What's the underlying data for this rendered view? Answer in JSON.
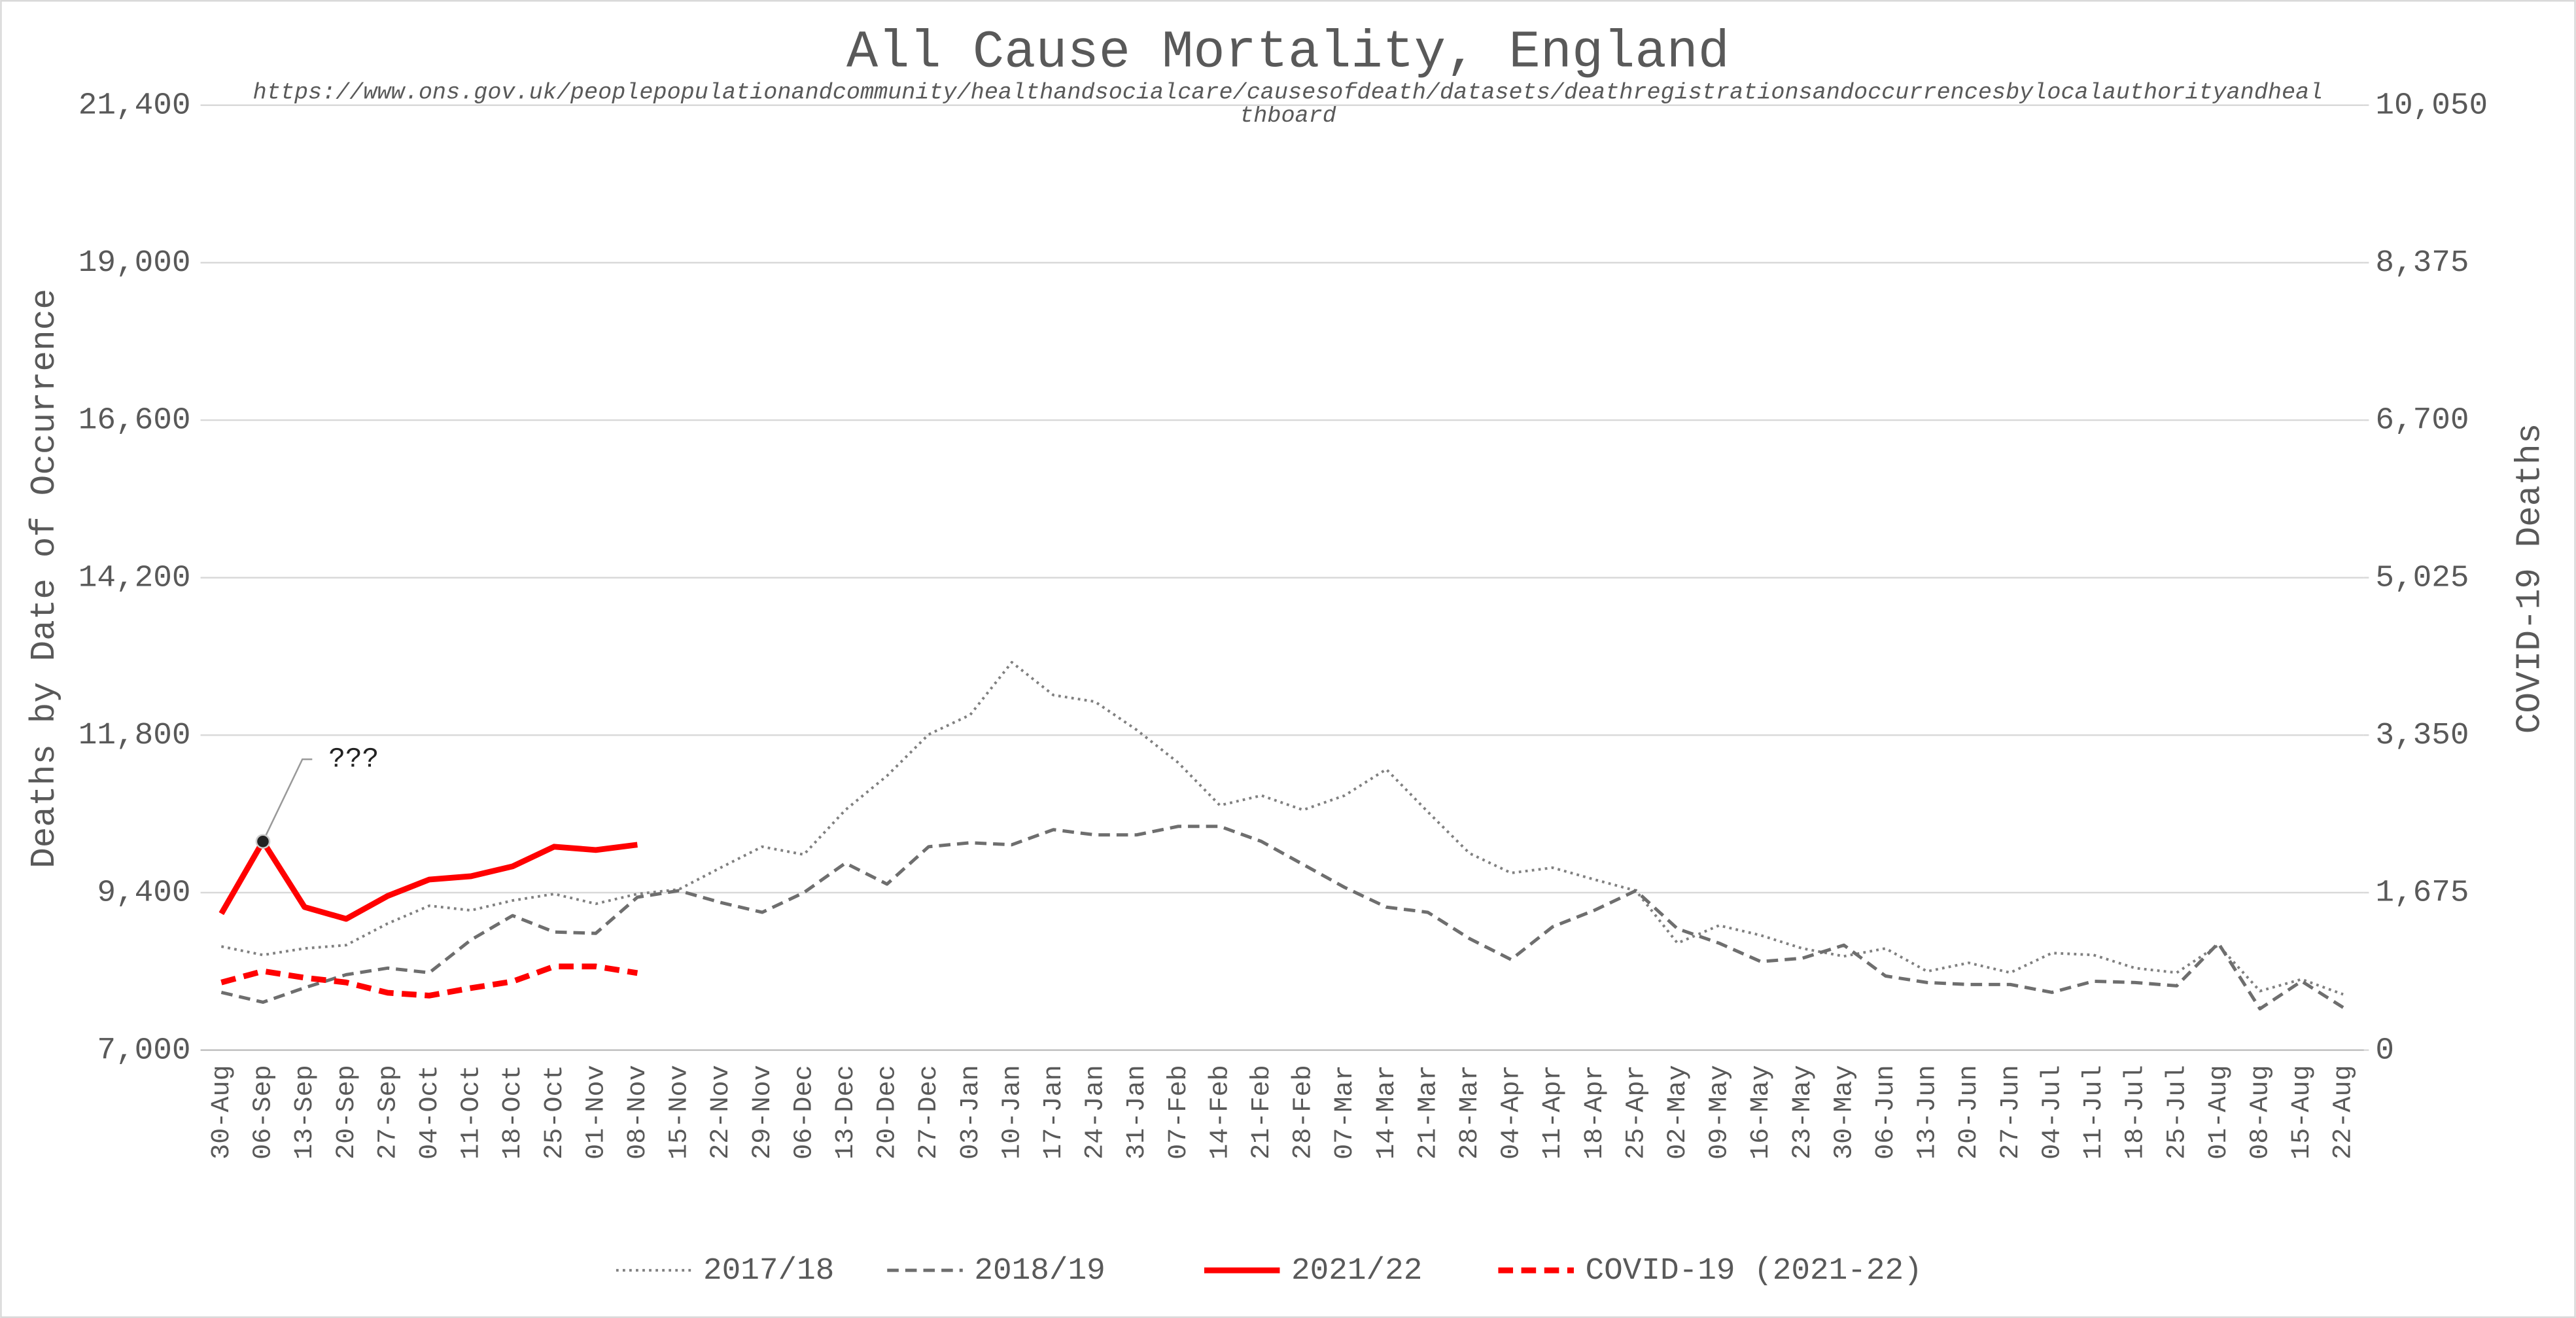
{
  "chart_data": {
    "type": "line",
    "title": "All Cause Mortality, England",
    "subtitle": "https://www.ons.gov.uk/peoplepopulationandcommunity/healthandsocialcare/causesofdeath/datasets/deathregistrationsandoccurrencesbylocalauthorityandhealthboard",
    "y_label": "Deaths by Date of Occurrence",
    "y2_label": "COVID-19 Deaths",
    "categories": [
      "30-Aug",
      "06-Sep",
      "13-Sep",
      "20-Sep",
      "27-Sep",
      "04-Oct",
      "11-Oct",
      "18-Oct",
      "25-Oct",
      "01-Nov",
      "08-Nov",
      "15-Nov",
      "22-Nov",
      "29-Nov",
      "06-Dec",
      "13-Dec",
      "20-Dec",
      "27-Dec",
      "03-Jan",
      "10-Jan",
      "17-Jan",
      "24-Jan",
      "31-Jan",
      "07-Feb",
      "14-Feb",
      "21-Feb",
      "28-Feb",
      "07-Mar",
      "14-Mar",
      "21-Mar",
      "28-Mar",
      "04-Apr",
      "11-Apr",
      "18-Apr",
      "25-Apr",
      "02-May",
      "09-May",
      "16-May",
      "23-May",
      "30-May",
      "06-Jun",
      "13-Jun",
      "20-Jun",
      "27-Jun",
      "04-Jul",
      "11-Jul",
      "18-Jul",
      "25-Jul",
      "01-Aug",
      "08-Aug",
      "15-Aug",
      "22-Aug"
    ],
    "series": [
      {
        "name": "2017/18",
        "color": "#808080",
        "style": "dotted",
        "values": [
          8580,
          8450,
          8550,
          8600,
          8930,
          9200,
          9130,
          9280,
          9380,
          9230,
          9380,
          9450,
          9780,
          10100,
          9980,
          10660,
          11180,
          11810,
          12110,
          12910,
          12410,
          12310,
          11880,
          11380,
          10730,
          10880,
          10660,
          10880,
          11280,
          10630,
          10000,
          9700,
          9780,
          9600,
          9430,
          8630,
          8900,
          8750,
          8550,
          8430,
          8550,
          8200,
          8330,
          8180,
          8480,
          8450,
          8250,
          8180,
          8600,
          7900,
          8080,
          7850
        ]
      },
      {
        "name": "2018/19",
        "color": "#6e6e6e",
        "style": "dashed",
        "values": [
          7880,
          7730,
          7950,
          8150,
          8250,
          8180,
          8680,
          9050,
          8800,
          8780,
          9330,
          9430,
          9250,
          9100,
          9400,
          9850,
          9530,
          10100,
          10160,
          10130,
          10360,
          10280,
          10280,
          10410,
          10410,
          10180,
          9830,
          9480,
          9180,
          9100,
          8700,
          8380,
          8880,
          9130,
          9430,
          8850,
          8630,
          8350,
          8400,
          8600,
          8130,
          8030,
          8000,
          8000,
          7880,
          8050,
          8030,
          7980,
          8630,
          7630,
          8050,
          7650
        ]
      },
      {
        "name": "2021/22",
        "color": "#ff0000",
        "style": "solid",
        "values": [
          9080,
          10180,
          9180,
          9000,
          9350,
          9600,
          9650,
          9800,
          10100,
          10050,
          10130,
          null,
          null,
          null,
          null,
          null,
          null,
          null,
          null,
          null,
          null,
          null,
          null,
          null,
          null,
          null,
          null,
          null,
          null,
          null,
          null,
          null,
          null,
          null,
          null,
          null,
          null,
          null,
          null,
          null,
          null,
          null,
          null,
          null,
          null,
          null,
          null,
          null,
          null,
          null,
          null,
          null
        ]
      },
      {
        "name": "COVID-19 (2021-22)",
        "color": "#ff0000",
        "style": "bold-dashed",
        "axis": "y2",
        "values": [
          720,
          840,
          770,
          720,
          610,
          580,
          660,
          730,
          890,
          890,
          820,
          null,
          null,
          null,
          null,
          null,
          null,
          null,
          null,
          null,
          null,
          null,
          null,
          null,
          null,
          null,
          null,
          null,
          null,
          null,
          null,
          null,
          null,
          null,
          null,
          null,
          null,
          null,
          null,
          null,
          null,
          null,
          null,
          null,
          null,
          null,
          null,
          null,
          null,
          null,
          null,
          null
        ]
      }
    ],
    "annotations": [
      {
        "text": "???",
        "x": "06-Sep",
        "series": "2021/22"
      }
    ],
    "ylim": [
      7000,
      21400
    ],
    "yticks": [
      {
        "value": 7000,
        "label": "7,000"
      },
      {
        "value": 9400,
        "label": "9,400"
      },
      {
        "value": 11800,
        "label": "11,800"
      },
      {
        "value": 14200,
        "label": "14,200"
      },
      {
        "value": 16600,
        "label": "16,600"
      },
      {
        "value": 19000,
        "label": "19,000"
      },
      {
        "value": 21400,
        "label": "21,400"
      }
    ],
    "y2lim": [
      0,
      10050
    ],
    "y2ticks": [
      0,
      {
        "value": 1675,
        "label": "1,675"
      },
      {
        "value": 3350,
        "label": "3,350"
      },
      {
        "value": 5025,
        "label": "5,025"
      },
      {
        "value": 6700,
        "label": "6,700"
      },
      {
        "value": 8375,
        "label": "8,375"
      },
      {
        "value": 10050,
        "label": "10,050"
      }
    ],
    "grid": true,
    "legend": "bottom"
  }
}
